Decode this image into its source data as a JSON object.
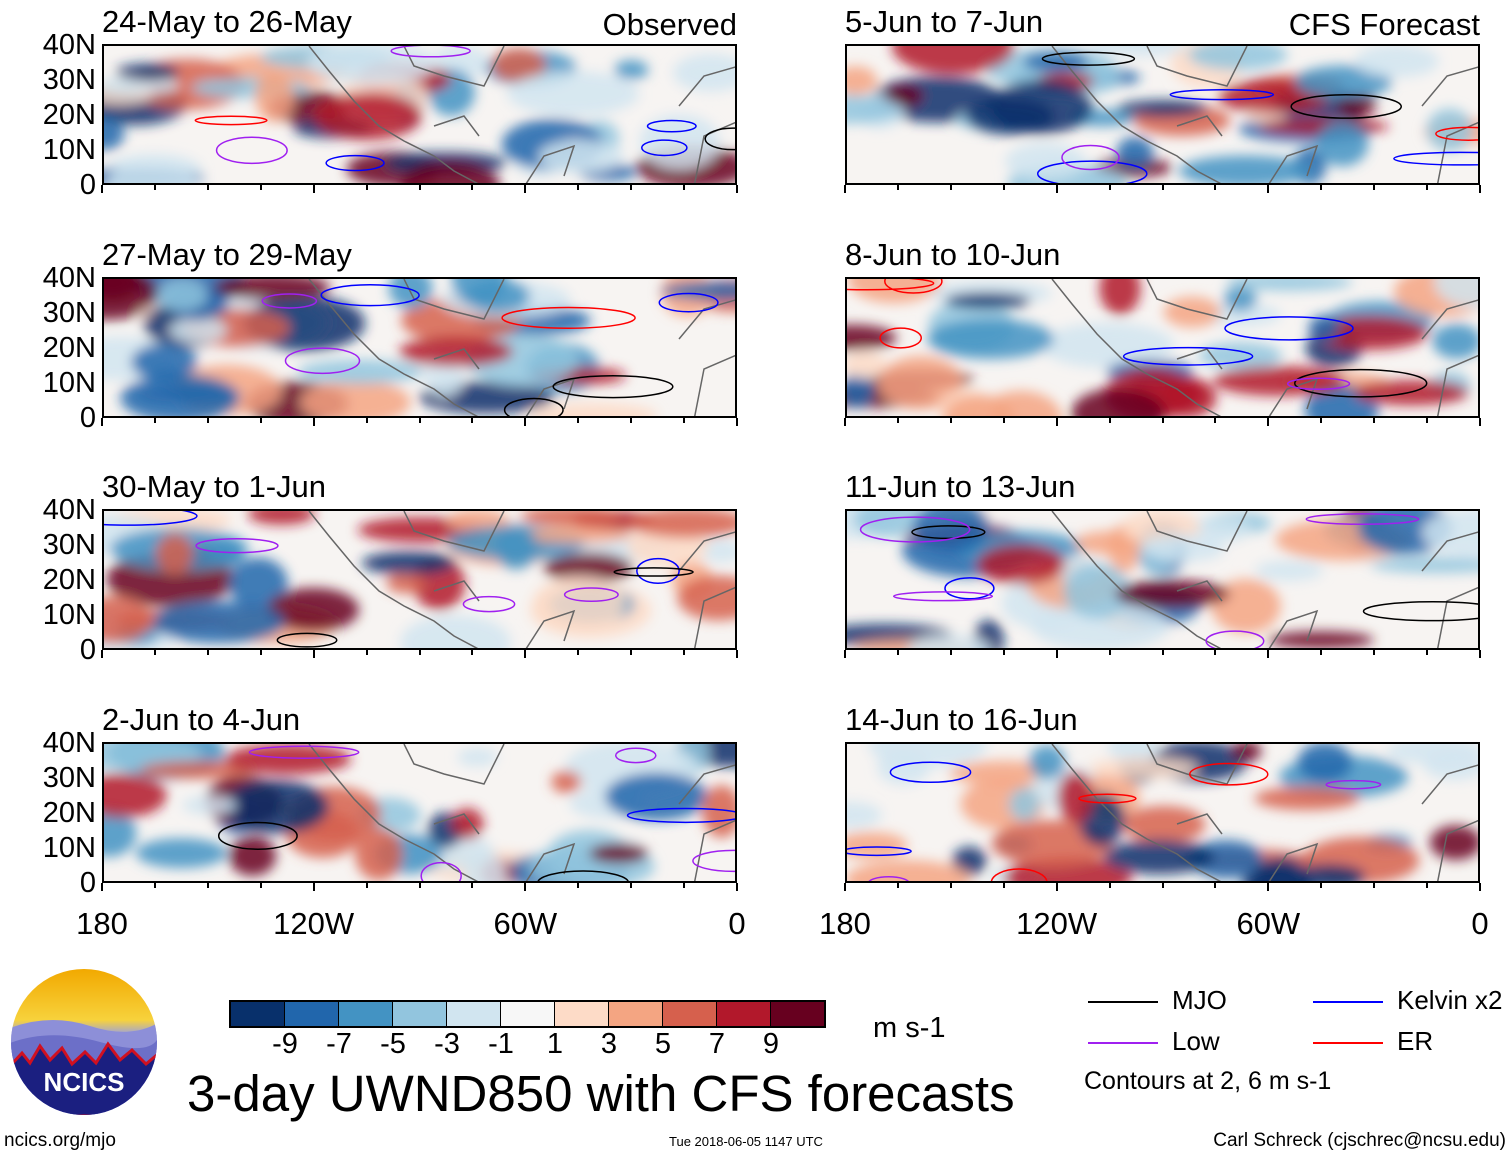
{
  "panels": [
    {
      "title": "24-May to 26-May",
      "label": "Observed",
      "column": "left"
    },
    {
      "title": "5-Jun to 7-Jun",
      "label": "CFS Forecast",
      "column": "right"
    },
    {
      "title": "27-May to 29-May",
      "label": "",
      "column": "left"
    },
    {
      "title": "8-Jun to 10-Jun",
      "label": "",
      "column": "right"
    },
    {
      "title": "30-May to 1-Jun",
      "label": "",
      "column": "left"
    },
    {
      "title": "11-Jun to 13-Jun",
      "label": "",
      "column": "right"
    },
    {
      "title": "2-Jun to 4-Jun",
      "label": "",
      "column": "left"
    },
    {
      "title": "14-Jun to 16-Jun",
      "label": "",
      "column": "right"
    }
  ],
  "y_ticks": [
    "40N",
    "30N",
    "20N",
    "10N",
    "0"
  ],
  "x_ticks": [
    "180",
    "120W",
    "60W",
    "0"
  ],
  "colorbar": {
    "colors": [
      "#08306b",
      "#2166ac",
      "#4393c3",
      "#92c5de",
      "#d1e5f0",
      "#f7f7f7",
      "#fddbc7",
      "#f4a582",
      "#d6604d",
      "#b2182b",
      "#67001f"
    ],
    "labels": [
      "-9",
      "-7",
      "-5",
      "-3",
      "-1",
      "1",
      "3",
      "5",
      "7",
      "9"
    ],
    "units": "m s-1"
  },
  "legend": {
    "items": [
      {
        "label": "MJO",
        "color": "#000000"
      },
      {
        "label": "Kelvin x2",
        "color": "#0000ff"
      },
      {
        "label": "Low",
        "color": "#a020f0"
      },
      {
        "label": "ER",
        "color": "#ff0000"
      }
    ],
    "note": "Contours at 2, 6 m s-1"
  },
  "title": "3-day UWND850 with CFS forecasts",
  "logo": {
    "text": "NCICS"
  },
  "footer": {
    "url": "ncics.org/mjo",
    "timestamp": "Tue 2018-06-05 1147 UTC",
    "credit": "Carl Schreck (cjschrec@ncsu.edu)"
  }
}
